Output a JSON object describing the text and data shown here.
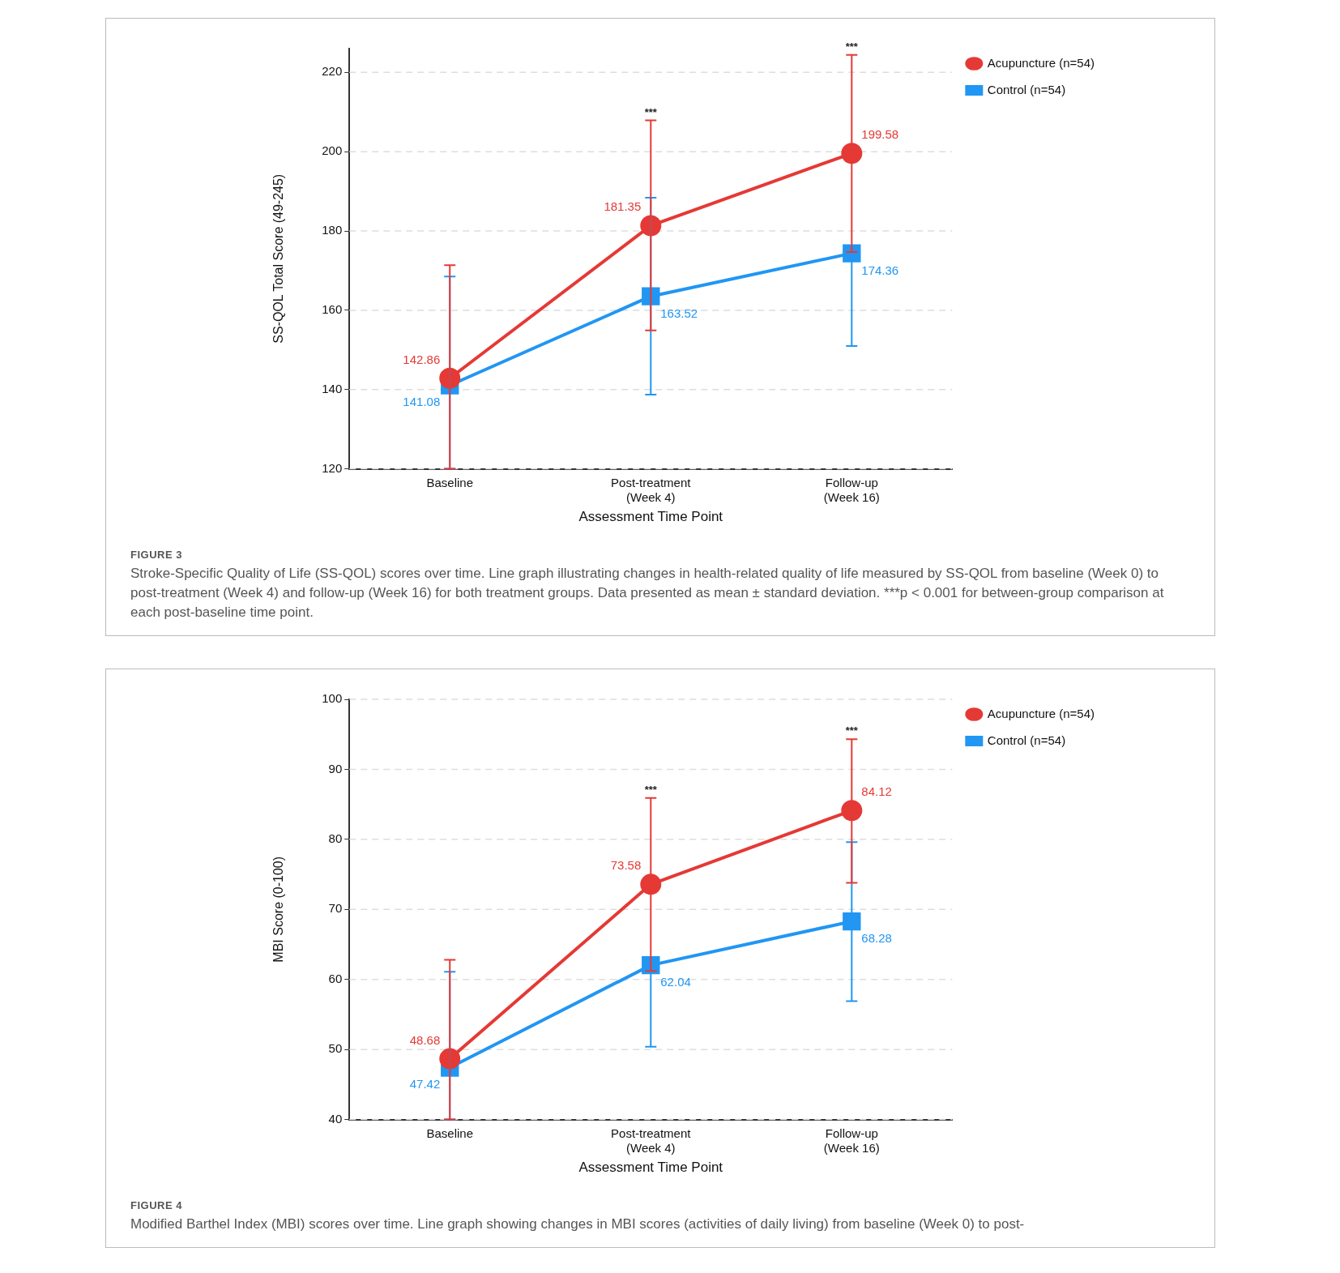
{
  "chart_data": [
    {
      "type": "line",
      "categories": [
        "Baseline",
        "Post-treatment\n(Week 4)",
        "Follow-up\n(Week 16)"
      ],
      "xlabel": "Assessment Time Point",
      "ylabel": "SS-QOL Total Score (49-245)",
      "ylim": [
        120,
        226
      ],
      "yticks": [
        120,
        140,
        160,
        180,
        200,
        220
      ],
      "grid": "y",
      "legend": "top right",
      "data_labels": true,
      "series": [
        {
          "name": "Acupuncture (n=54)",
          "color": "#e53935",
          "marker": "circle",
          "values": [
            142.86,
            181.35,
            199.58
          ],
          "errors": [
            [
              120,
              171.4
            ],
            [
              154.9,
              207.9
            ],
            [
              174.7,
              224.4
            ]
          ]
        },
        {
          "name": "Control (n=54)",
          "color": "#2196f3",
          "marker": "square",
          "values": [
            141.08,
            163.52,
            174.36
          ],
          "errors": [
            [
              120,
              168.5
            ],
            [
              138.7,
              188.4
            ],
            [
              151.0,
              174.36
            ]
          ]
        }
      ],
      "annotations": [
        {
          "text": "***",
          "x": "Post-treatment\n(Week 4)",
          "y": 207.9
        },
        {
          "text": "***",
          "x": "Follow-up\n(Week 16)",
          "y": 224.4
        },
        "FIGURE 3",
        "Stroke-Specific Quality of Life (SS-QOL) scores over time. Line graph illustrating changes in health-related quality of life measured by SS-QOL from baseline (Week 0) to post-treatment (Week 4) and follow-up (Week 16) for both treatment groups. Data presented as mean ± standard deviation. ***p < 0.001 for between-group comparison at each post-baseline time point."
      ]
    },
    {
      "type": "line",
      "categories": [
        "Baseline",
        "Post-treatment\n(Week 4)",
        "Follow-up\n(Week 16)"
      ],
      "xlabel": "Assessment Time Point",
      "ylabel": "MBI Score (0-100)",
      "ylim": [
        40,
        100
      ],
      "yticks": [
        40,
        50,
        60,
        70,
        80,
        90,
        100
      ],
      "grid": "y",
      "legend": "top right",
      "data_labels": true,
      "series": [
        {
          "name": "Acupuncture (n=54)",
          "color": "#e53935",
          "marker": "circle",
          "values": [
            48.68,
            73.58,
            84.12
          ],
          "errors": [
            [
              40,
              62.8
            ],
            [
              61.2,
              85.9
            ],
            [
              73.8,
              94.3
            ]
          ]
        },
        {
          "name": "Control (n=54)",
          "color": "#2196f3",
          "marker": "square",
          "values": [
            47.42,
            62.04,
            68.28
          ],
          "errors": [
            [
              40,
              61.1
            ],
            [
              50.4,
              62.04
            ],
            [
              56.9,
              79.6
            ]
          ]
        }
      ],
      "annotations": [
        {
          "text": "***",
          "x": "Post-treatment\n(Week 4)",
          "y": 85.9
        },
        {
          "text": "***",
          "x": "Follow-up\n(Week 16)",
          "y": 94.3
        },
        "FIGURE 4",
        "Modified Barthel Index (MBI) scores over time. Line graph showing changes in MBI scores (activities of daily living) from baseline (Week 0) to post-"
      ]
    }
  ]
}
